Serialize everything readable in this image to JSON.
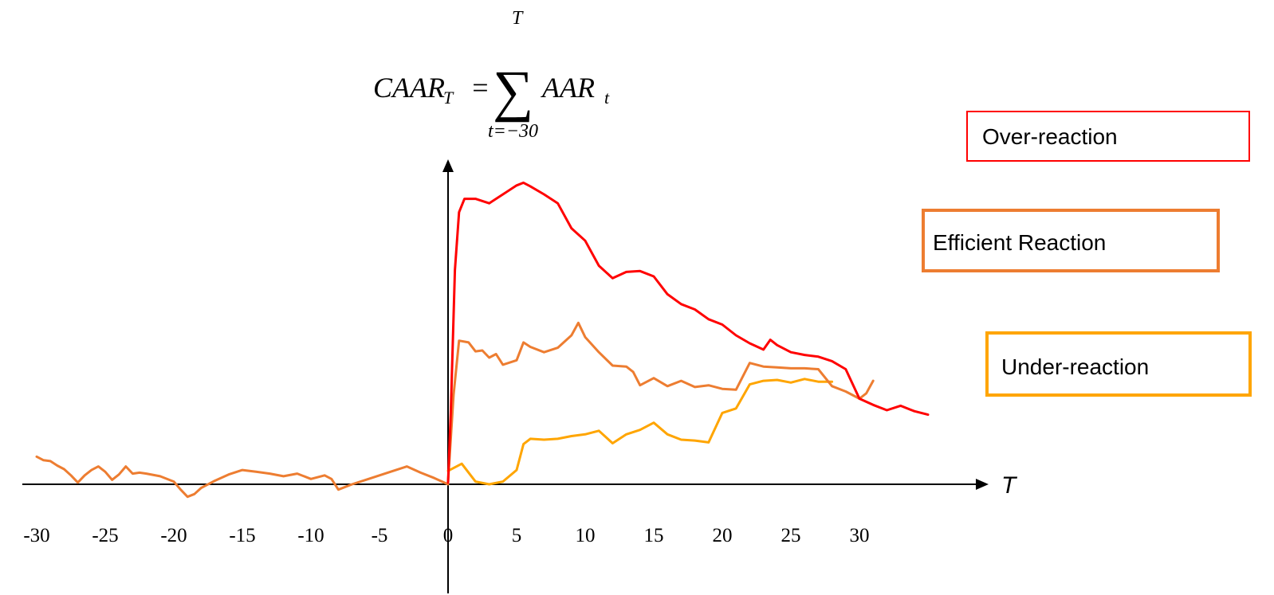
{
  "formula": {
    "lhs": "CAAR",
    "lhs_sub": "T",
    "equals": "=",
    "sigma": "∑",
    "upper": "T",
    "lower": "t=−30",
    "term": "AAR",
    "term_sub": "t"
  },
  "chart_data": {
    "type": "line",
    "title": "",
    "xlabel": "T",
    "ylabel": "",
    "xlim": [
      -30,
      37
    ],
    "ylim": [
      -2,
      34
    ],
    "x_ticks": [
      -30,
      -25,
      -20,
      -15,
      -10,
      -5,
      0,
      5,
      10,
      15,
      20,
      25,
      30
    ],
    "x_tick_labels": [
      "-30",
      "-25",
      "-20",
      "-15",
      "-10",
      "-5",
      "0",
      "5",
      "10",
      "15",
      "20",
      "25",
      "30"
    ],
    "grid": false,
    "legend": "right",
    "pre_event": {
      "color": "#ED7D31",
      "x": [
        -30,
        -29.5,
        -29,
        -28.5,
        -28,
        -27.5,
        -27,
        -26.5,
        -26,
        -25.5,
        -25,
        -24.5,
        -24,
        -23.5,
        -23,
        -22.5,
        -22,
        -21,
        -20,
        -19.5,
        -19,
        -18.5,
        -18,
        -17,
        -16,
        -15,
        -14,
        -13,
        -12,
        -11,
        -10,
        -9,
        -8.5,
        -8,
        -7,
        -6,
        -5,
        -4,
        -3,
        -2,
        -1,
        0
      ],
      "y": [
        3.1,
        2.7,
        2.6,
        2.1,
        1.7,
        1.0,
        0.2,
        1.0,
        1.6,
        2.0,
        1.4,
        0.5,
        1.1,
        2.0,
        1.2,
        1.3,
        1.2,
        0.9,
        0.3,
        -0.6,
        -1.4,
        -1.1,
        -0.4,
        0.4,
        1.1,
        1.6,
        1.4,
        1.2,
        0.9,
        1.2,
        0.6,
        1.0,
        0.6,
        -0.6,
        0.0,
        0.5,
        1.0,
        1.5,
        2.0,
        1.3,
        0.7,
        0.0
      ]
    },
    "series": [
      {
        "name": "Over-reaction",
        "color": "#FF0000",
        "x": [
          0,
          0.2,
          0.5,
          0.8,
          1.2,
          2,
          3,
          4,
          5,
          5.5,
          6,
          7,
          8,
          9,
          10,
          11,
          12,
          13,
          14,
          15,
          16,
          17,
          18,
          19,
          20,
          21,
          22,
          23,
          23.5,
          24,
          25,
          26,
          27,
          28,
          29,
          30,
          31,
          32,
          33,
          34,
          35
        ],
        "y": [
          0.2,
          8,
          24,
          30.5,
          32,
          32,
          31.5,
          32.5,
          33.5,
          33.8,
          33.4,
          32.5,
          31.5,
          28.7,
          27.3,
          24.5,
          23.1,
          23.8,
          23.9,
          23.3,
          21.3,
          20.2,
          19.6,
          18.5,
          17.9,
          16.7,
          15.8,
          15.1,
          16.2,
          15.6,
          14.8,
          14.5,
          14.3,
          13.8,
          12.9,
          9.6,
          8.9,
          8.3,
          8.8,
          8.2,
          7.8
        ]
      },
      {
        "name": "Efficient Reaction",
        "color": "#ED7D31",
        "x": [
          0,
          0.4,
          0.8,
          1.5,
          2,
          2.5,
          3,
          3.5,
          4,
          5,
          5.5,
          6,
          7,
          8,
          9,
          9.5,
          10,
          11,
          12,
          13,
          13.5,
          14,
          15,
          16,
          17,
          18,
          19,
          20,
          21,
          22,
          23,
          24,
          25,
          26,
          27,
          28,
          29,
          30,
          30.5,
          31
        ],
        "y": [
          0.3,
          10,
          16.1,
          15.9,
          14.9,
          15.0,
          14.2,
          14.6,
          13.4,
          13.9,
          15.9,
          15.4,
          14.8,
          15.3,
          16.7,
          18.1,
          16.5,
          14.8,
          13.3,
          13.2,
          12.6,
          11.1,
          11.9,
          11.0,
          11.6,
          10.9,
          11.1,
          10.7,
          10.6,
          13.6,
          13.2,
          13.1,
          13.0,
          13.0,
          12.9,
          11.0,
          10.4,
          9.6,
          10.2,
          11.6
        ]
      },
      {
        "name": "Under-reaction",
        "color": "#FFA500",
        "x": [
          0,
          1,
          2,
          3,
          4,
          5,
          5.5,
          6,
          7,
          8,
          9,
          10,
          11,
          12,
          13,
          14,
          15,
          16,
          17,
          18,
          19,
          20,
          21,
          22,
          23,
          24,
          25,
          26,
          27,
          28
        ],
        "y": [
          1.5,
          2.3,
          0.3,
          0.0,
          0.3,
          1.6,
          4.5,
          5.1,
          5.0,
          5.1,
          5.4,
          5.6,
          6.0,
          4.6,
          5.6,
          6.1,
          6.9,
          5.6,
          5.0,
          4.9,
          4.7,
          8.0,
          8.5,
          11.2,
          11.6,
          11.7,
          11.4,
          11.8,
          11.5,
          11.5
        ]
      }
    ]
  }
}
